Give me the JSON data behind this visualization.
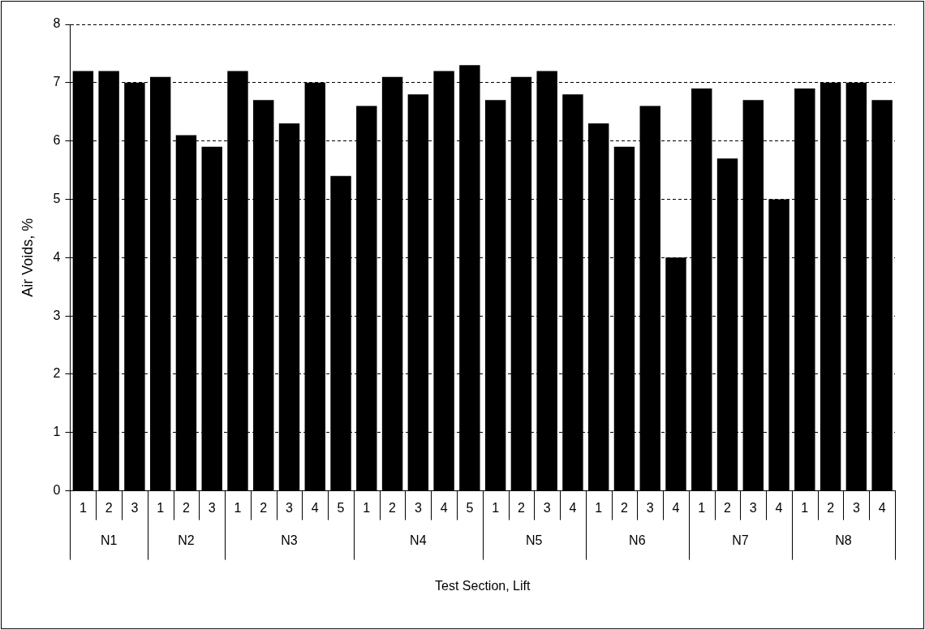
{
  "chart_data": {
    "type": "bar",
    "xlabel": "Test Section, Lift",
    "ylabel": "Air Voids, %",
    "categories": [
      "1",
      "2",
      "3",
      "1",
      "2",
      "3",
      "1",
      "2",
      "3",
      "4",
      "5",
      "1",
      "2",
      "3",
      "4",
      "5",
      "1",
      "2",
      "3",
      "4",
      "1",
      "2",
      "3",
      "4",
      "1",
      "2",
      "3",
      "4",
      "1",
      "2",
      "3",
      "4"
    ],
    "values": [
      7.2,
      7.2,
      7.0,
      7.1,
      6.1,
      5.9,
      7.2,
      6.7,
      6.3,
      7.0,
      5.4,
      6.6,
      7.1,
      6.8,
      7.2,
      7.3,
      6.7,
      7.1,
      7.2,
      6.8,
      6.3,
      5.9,
      6.6,
      4.0,
      6.9,
      5.7,
      6.7,
      5.0,
      6.9,
      7.0,
      7.0,
      6.7
    ],
    "color": "#000000",
    "annotations": [
      "N1",
      "N2",
      "N3",
      "N4",
      "N5",
      "N6",
      "N7",
      "N8"
    ],
    "ylim": [
      0,
      8
    ],
    "yticks": [
      0,
      1,
      2,
      3,
      4,
      5,
      6,
      7,
      8
    ],
    "grid": "y",
    "legend": false
  }
}
